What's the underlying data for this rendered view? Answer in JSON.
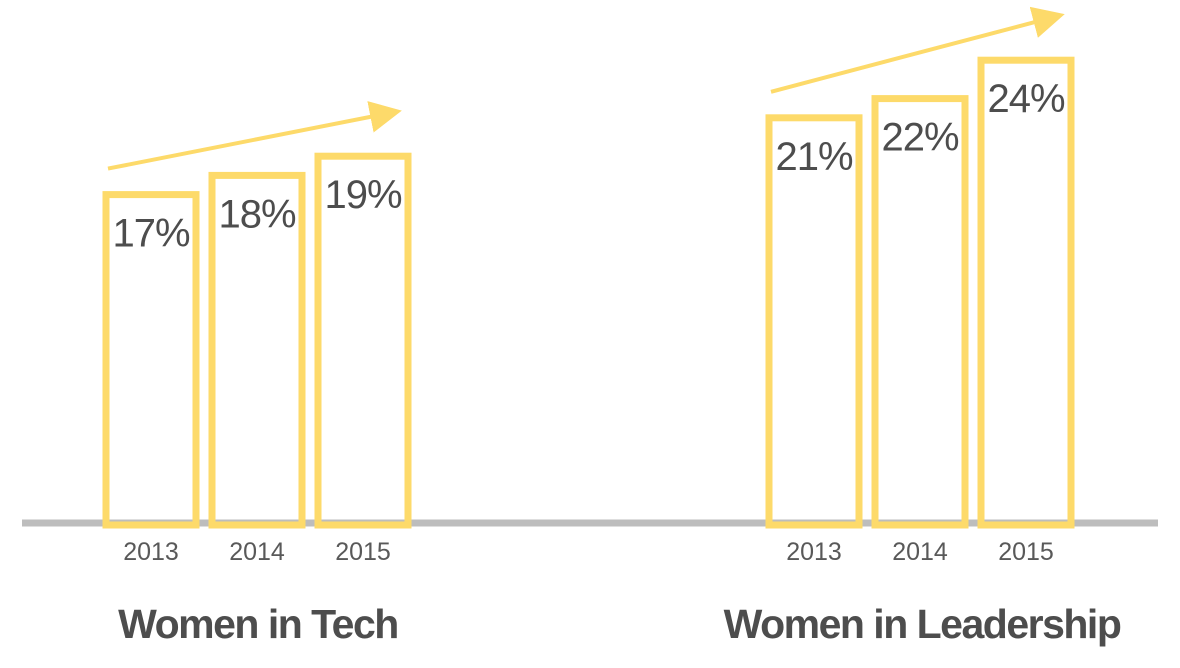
{
  "colors": {
    "bar_stroke": "#FDDA6A",
    "arrow": "#FDDA6A",
    "baseline": "#BDBDBD",
    "value_text": "#4D4D4D",
    "tick_text": "#595959",
    "title_text": "#4D4D4D"
  },
  "chart_data": [
    {
      "type": "bar",
      "title": "Women in Tech",
      "categories": [
        "2013",
        "2014",
        "2015"
      ],
      "values": [
        17,
        18,
        19
      ],
      "value_labels": [
        "17%",
        "18%",
        "19%"
      ],
      "ylabel": "",
      "xlabel": "",
      "grid": false,
      "trend_arrow": true
    },
    {
      "type": "bar",
      "title": "Women in Leadership",
      "categories": [
        "2013",
        "2014",
        "2015"
      ],
      "values": [
        21,
        22,
        24
      ],
      "value_labels": [
        "21%",
        "22%",
        "24%"
      ],
      "ylabel": "",
      "xlabel": "",
      "grid": false,
      "trend_arrow": true
    }
  ]
}
